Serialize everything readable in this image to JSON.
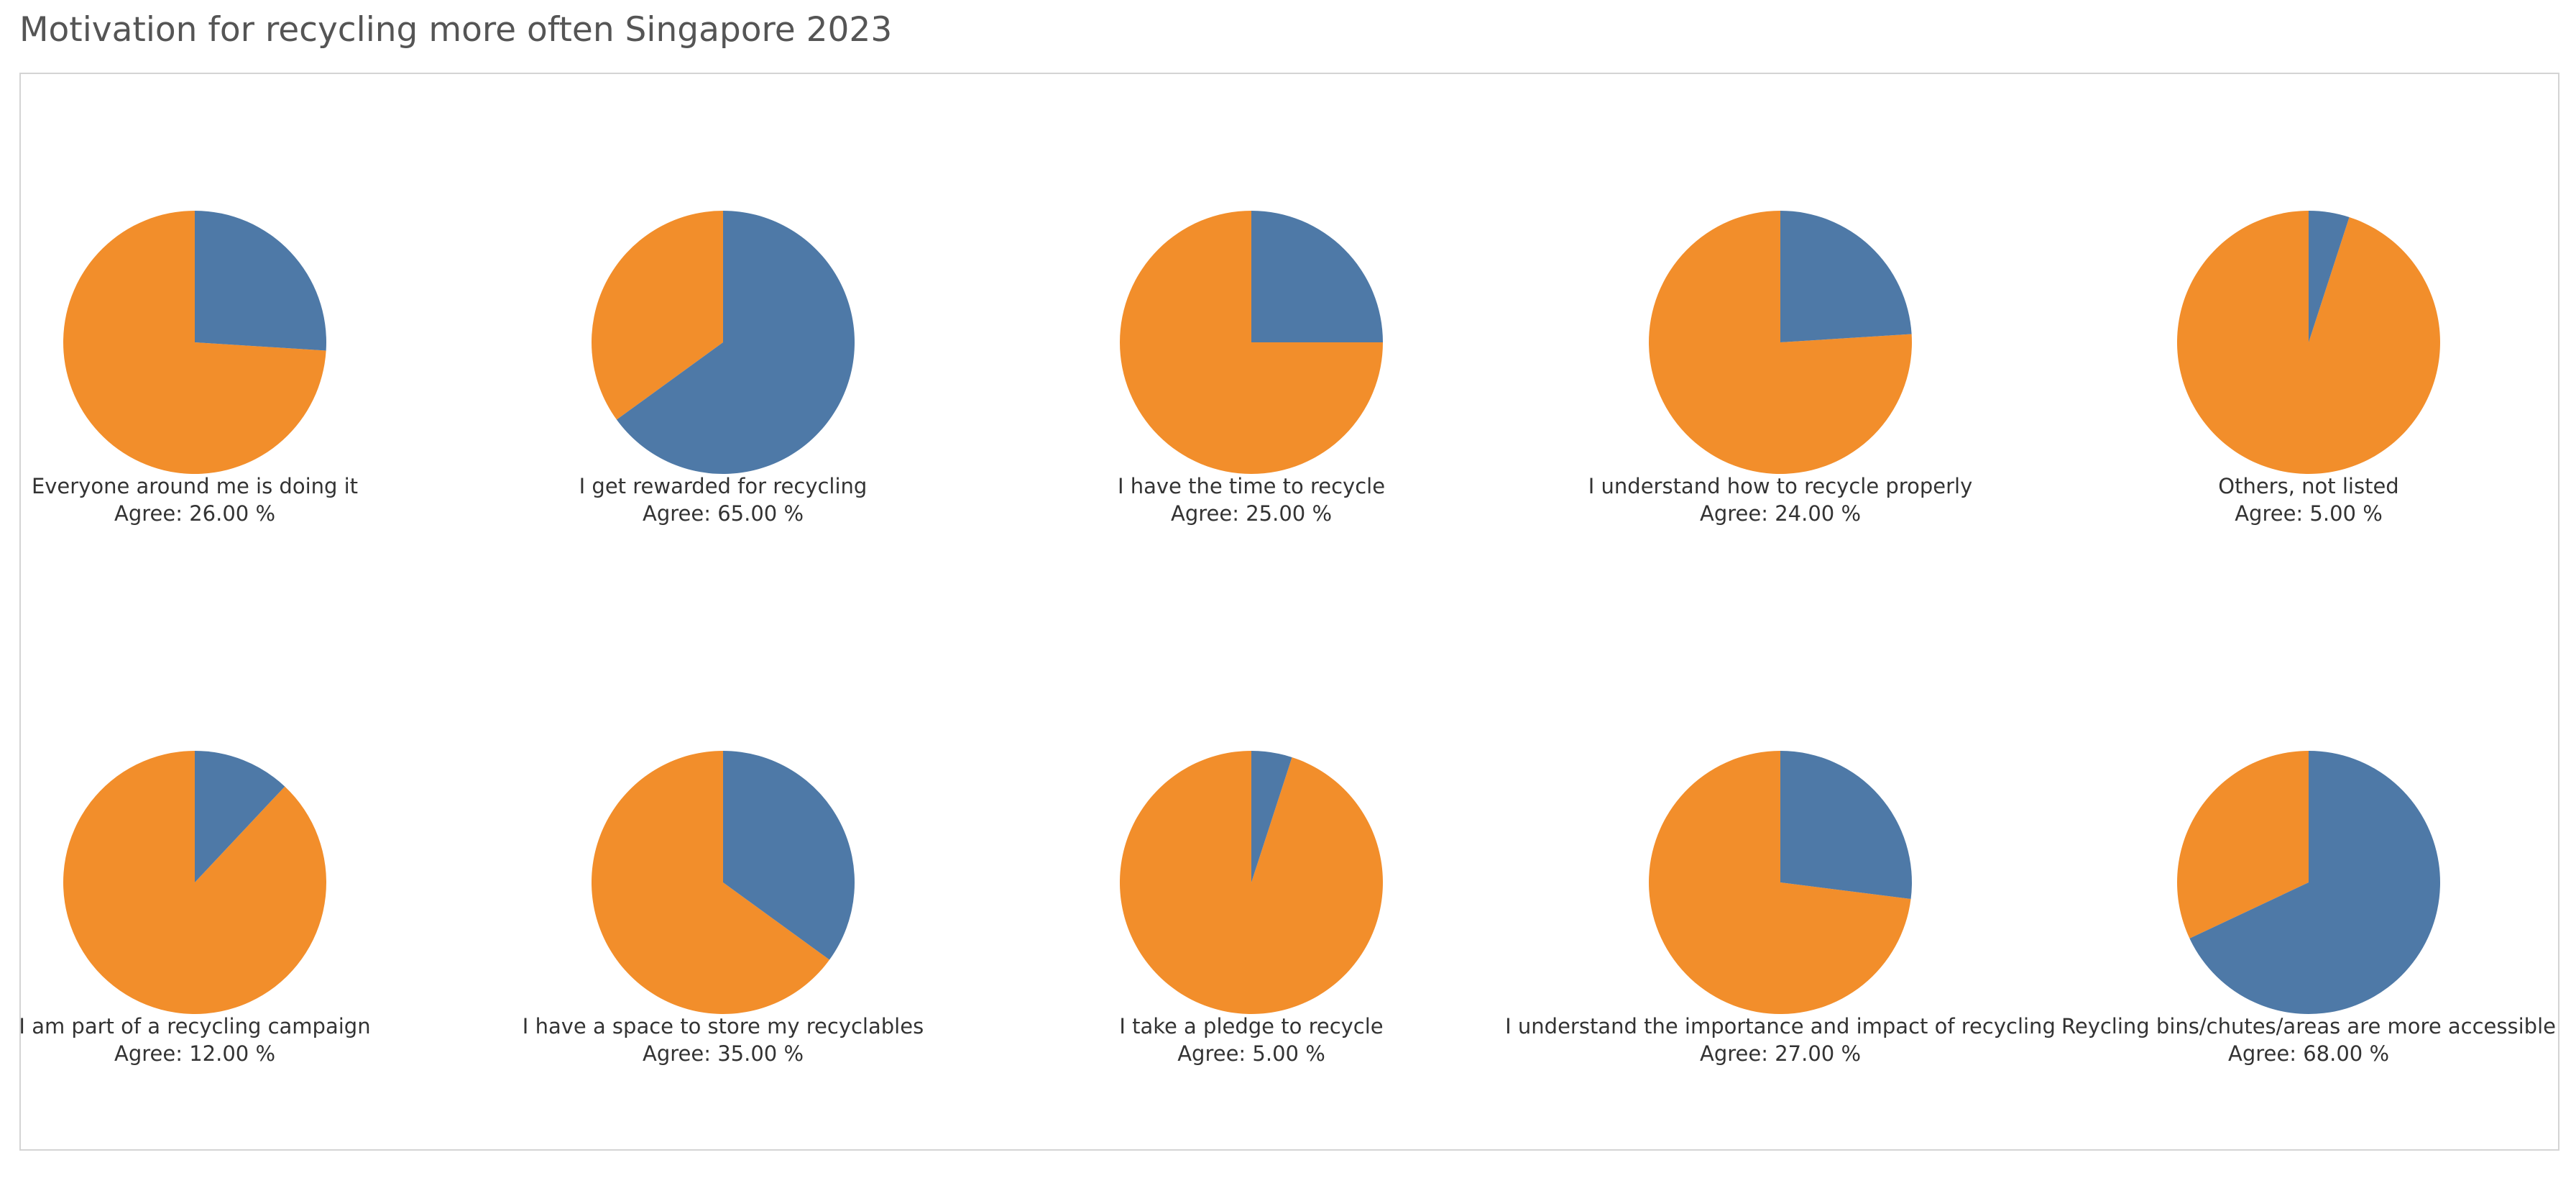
{
  "chart_data": {
    "type": "pie",
    "title": "Motivation for recycling more often Singapore 2023",
    "value_prefix": "Agree: ",
    "value_suffix": " %",
    "colors": {
      "agree": "#4e79a7",
      "other": "#f28e2b"
    },
    "series": [
      {
        "name": "Everyone around me is doing it",
        "value": 26
      },
      {
        "name": "I get rewarded for recycling",
        "value": 65
      },
      {
        "name": "I have the time to recycle",
        "value": 25
      },
      {
        "name": "I understand how to recycle properly",
        "value": 24
      },
      {
        "name": "Others, not listed",
        "value": 5
      },
      {
        "name": "I am part of a recycling campaign",
        "value": 12
      },
      {
        "name": "I have a space to store my recyclables",
        "value": 35
      },
      {
        "name": "I take a pledge to recycle",
        "value": 5
      },
      {
        "name": "I understand the importance and impact of recycling",
        "value": 27
      },
      {
        "name": "Reycling bins/chutes/areas are more accessible",
        "value": 68
      }
    ]
  }
}
